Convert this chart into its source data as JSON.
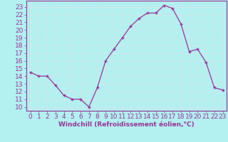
{
  "x": [
    0,
    1,
    2,
    3,
    4,
    5,
    6,
    7,
    8,
    9,
    10,
    11,
    12,
    13,
    14,
    15,
    16,
    17,
    18,
    19,
    20,
    21,
    22,
    23
  ],
  "y": [
    14.5,
    14.0,
    14.0,
    12.8,
    11.5,
    11.0,
    11.0,
    10.0,
    12.5,
    16.0,
    17.5,
    19.0,
    20.5,
    21.5,
    22.2,
    22.2,
    23.2,
    22.8,
    20.8,
    17.2,
    17.5,
    15.8,
    12.5,
    12.2
  ],
  "line_color": "#993399",
  "marker": "+",
  "background_color": "#b3f0f0",
  "grid_color": "#d0e8e8",
  "xlabel": "Windchill (Refroidissement éolien,°C)",
  "ylabel_ticks": [
    10,
    11,
    12,
    13,
    14,
    15,
    16,
    17,
    18,
    19,
    20,
    21,
    22,
    23
  ],
  "xlim": [
    -0.5,
    23.5
  ],
  "ylim": [
    9.5,
    23.8
  ],
  "tick_label_color": "#993399",
  "xlabel_color": "#993399",
  "spine_color": "#993399",
  "font_size": 6.5
}
